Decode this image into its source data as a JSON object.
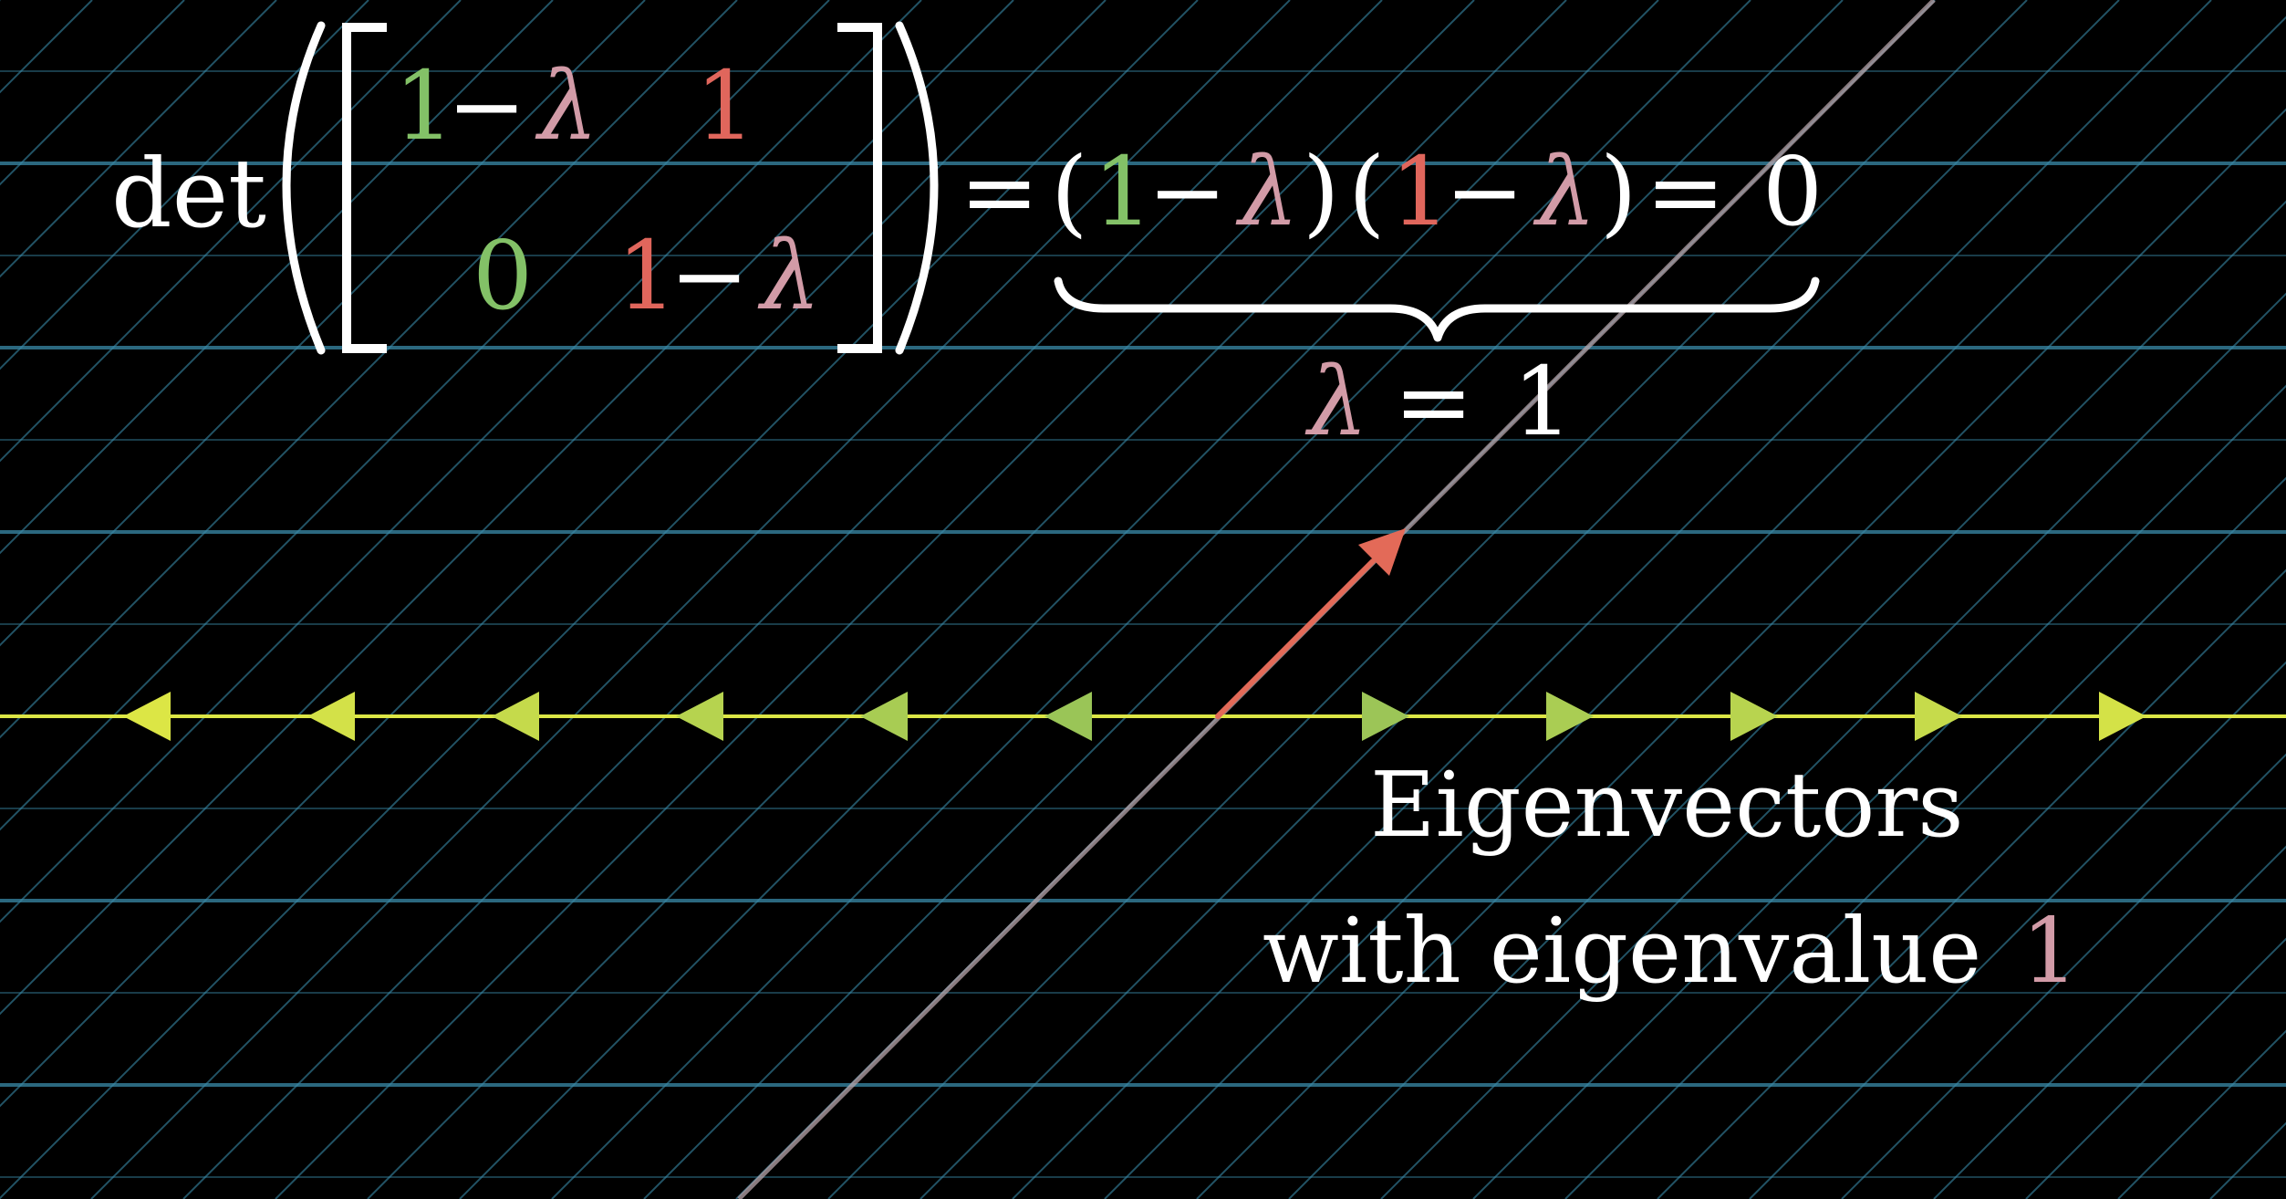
{
  "equation": {
    "det_label": "det",
    "matrix": {
      "a11_one": "1",
      "a11_minus": "−",
      "a11_lambda": "λ",
      "a12": "1",
      "a21": "0",
      "a22_one": "1",
      "a22_minus": "−",
      "a22_lambda": "λ"
    },
    "equals_1": "=",
    "factor1_open": "(",
    "factor1_one": "1",
    "factor1_minus": "−",
    "factor1_lambda": "λ",
    "factor1_close": ")",
    "factor2_open": "(",
    "factor2_one": "1",
    "factor2_minus": "−",
    "factor2_lambda": "λ",
    "factor2_close": ")",
    "equals_2": "=",
    "zero": "0"
  },
  "solution": {
    "lambda": "λ",
    "equals": "=",
    "value": "1"
  },
  "caption": {
    "line1": "Eigenvectors",
    "line2_text": "with eigenvalue",
    "line2_value": "1"
  },
  "colors": {
    "background": "#000000",
    "grid_blue": "#2e6e86",
    "grid_diag": "#3a8aa8",
    "white": "#ffffff",
    "green": "#83c167",
    "red": "#e0665c",
    "pink": "#d29ba7",
    "yellow": "#dce645",
    "arrow_green": "#8fbf5a",
    "vector": "#e36a58"
  }
}
